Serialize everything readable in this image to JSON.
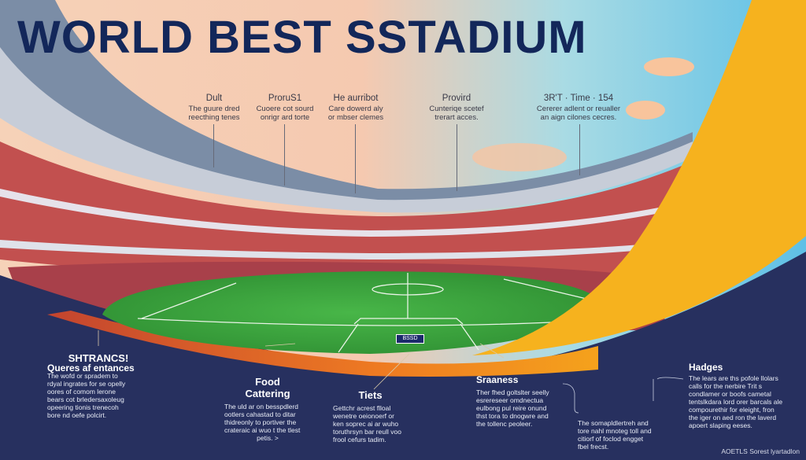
{
  "title": "WORLD BEST SSTADIUM",
  "top_notes": [
    {
      "heading": "Dult",
      "text": [
        "The guure dred",
        "reecthing tenes"
      ]
    },
    {
      "heading": "ProruS1",
      "text": [
        "Cuoere cot sourd",
        "onrigr ard torte"
      ]
    },
    {
      "heading": "He aurribot",
      "text": [
        "Care dowerd aly",
        "or mbser clemes"
      ]
    },
    {
      "heading": "Provird",
      "text": [
        "Cunteriqe scetef",
        "trerart acces."
      ]
    },
    {
      "heading": "3R'T  ·  Time  ·  154",
      "text": [
        "Cererer adlent or reualler",
        "an aign cilones cecres."
      ]
    }
  ],
  "pitch_badge": "BSSD",
  "cards": {
    "entrances": {
      "heading": "SHTRANCS!",
      "subheading": "Queres af entances",
      "text": [
        "The wofd or spradem to",
        "rdyal ingrates for se opelly",
        "oores of comom lerone",
        "bears cot brledersaxoleug",
        "opeering tionis trenecoh",
        "bore nd oefe polcirt."
      ]
    },
    "food": {
      "heading": "Food",
      "subheading": "Cattering",
      "text": [
        "The uld ar on besspdlerd",
        "ootlers cahastad to ditar",
        "thidreonly to portiver the",
        "crateraic ai wuo t the tlest",
        "petis. >"
      ]
    },
    "tiets": {
      "heading": "Tiets",
      "text": [
        "Gettchr acrest flloal",
        "wenetre oeionoerf or",
        "ken soprec ai ar wuho",
        "toruthrsyn bar reull voo",
        "frool cefurs tadim."
      ]
    },
    "sraaness": {
      "heading": "Sraaness",
      "text": [
        "Ther fhed goltslter seelly",
        "esrereseer omdnectua",
        "eulbong pul reire onund",
        "thst tora to dnogwre and",
        "the tollenc peoleer."
      ]
    },
    "middle": {
      "text": [
        "The somapldlertreh and",
        "tore nahl mnoteg toll and",
        "citiorf of foclod engget",
        "fbel frecst."
      ]
    },
    "hadges": {
      "heading": "Hadges",
      "text": [
        "The lears are ths pofole llolars",
        "calls for the nerbire Trit s",
        "condlamer or boofs cametal",
        "tentslkdara lord orer barcals ale",
        "compourethir for eleight, fron",
        "the iger on aed ron the laverd",
        "apoert slaping eeses."
      ]
    }
  },
  "credit": "AOETLS Sorest lyartadlon",
  "colors": {
    "navy": "#13275a",
    "yellow": "#f6b21e",
    "pitch": "#3aa53a",
    "seats": "#c2504f",
    "background": "#26305e"
  }
}
